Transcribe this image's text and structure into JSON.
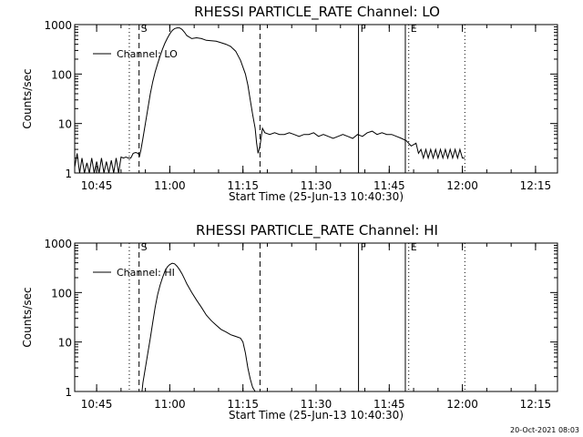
{
  "timestamp": "20-Oct-2021 08:03",
  "chart_data": [
    {
      "type": "line",
      "title": "RHESSI PARTICLE_RATE Channel: LO",
      "xlabel": "Start Time (25-Jun-13 10:40:30)",
      "ylabel": "Counts/sec",
      "yscale": "log",
      "xlim_minutes": [
        0,
        99
      ],
      "ylim": [
        1,
        1000
      ],
      "x_ticks": [
        {
          "min": 4.5,
          "label": "10:45"
        },
        {
          "min": 19.5,
          "label": "11:00"
        },
        {
          "min": 34.5,
          "label": "11:15"
        },
        {
          "min": 49.5,
          "label": "11:30"
        },
        {
          "min": 64.5,
          "label": "11:45"
        },
        {
          "min": 79.5,
          "label": "12:00"
        },
        {
          "min": 94.5,
          "label": "12:15"
        }
      ],
      "y_ticks": [
        {
          "value": 1,
          "label": "1"
        },
        {
          "value": 10,
          "label": "10"
        },
        {
          "value": 100,
          "label": "100"
        },
        {
          "value": 1000,
          "label": "1000"
        }
      ],
      "legend": "Channel: LO",
      "markers": [
        {
          "min": 11.2,
          "style": "dotted",
          "label": ""
        },
        {
          "min": 13.2,
          "style": "dashed",
          "label": "S"
        },
        {
          "min": 38.0,
          "style": "dashed",
          "label": ""
        },
        {
          "min": 58.2,
          "style": "solid",
          "label": "F"
        },
        {
          "min": 67.8,
          "style": "solid",
          "label": ""
        },
        {
          "min": 68.5,
          "style": "dotted",
          "label": "E"
        },
        {
          "min": 80.0,
          "style": "dotted",
          "label": ""
        }
      ],
      "series": [
        {
          "name": "Channel: LO",
          "x": [
            0.0,
            0.5,
            1.0,
            1.5,
            2.0,
            2.5,
            3.0,
            3.5,
            4.0,
            4.5,
            5.0,
            5.5,
            6.0,
            6.5,
            7.0,
            7.5,
            8.0,
            8.5,
            9.0,
            9.5,
            10.0,
            10.5,
            11.0,
            11.5,
            12.0,
            12.5,
            13.0,
            13.3,
            13.6,
            14.0,
            14.5,
            15.0,
            15.5,
            16.0,
            16.5,
            17.0,
            17.5,
            18.0,
            18.5,
            19.0,
            19.5,
            20.0,
            20.5,
            21.0,
            21.5,
            22.0,
            22.5,
            23.0,
            24.0,
            25.0,
            26.0,
            27.0,
            28.0,
            29.0,
            30.0,
            31.0,
            32.0,
            33.0,
            34.0,
            35.0,
            35.5,
            36.0,
            36.5,
            37.0,
            37.3,
            37.6,
            38.0,
            38.5,
            39.0,
            40.0,
            41.0,
            42.0,
            43.0,
            44.0,
            45.0,
            46.0,
            47.0,
            48.0,
            49.0,
            50.0,
            51.0,
            52.0,
            53.0,
            54.0,
            55.0,
            56.0,
            57.0,
            58.0,
            59.0,
            60.0,
            61.0,
            62.0,
            63.0,
            64.0,
            65.0,
            66.0,
            67.0,
            68.0,
            69.0,
            70.0,
            70.5,
            71.0,
            71.5,
            72.0,
            72.5,
            73.0,
            73.5,
            74.0,
            74.5,
            75.0,
            75.5,
            76.0,
            76.5,
            77.0,
            77.5,
            78.0,
            78.5,
            79.0,
            79.5,
            80.0
          ],
          "y": [
            1.3,
            2.5,
            1.0,
            2.0,
            1.0,
            1.6,
            1.0,
            2.0,
            1.0,
            1.7,
            1.0,
            2.0,
            1.0,
            1.7,
            1.0,
            1.8,
            1.0,
            2.0,
            1.0,
            2.1,
            2.0,
            2.1,
            2.0,
            2.0,
            2.5,
            2.6,
            2.5,
            2.2,
            3.0,
            5.0,
            10,
            20,
            40,
            70,
            110,
            160,
            230,
            320,
            420,
            530,
            650,
            760,
            830,
            860,
            860,
            800,
            700,
            600,
            520,
            540,
            520,
            480,
            470,
            460,
            430,
            400,
            360,
            290,
            190,
            100,
            60,
            30,
            15,
            8,
            4,
            2.5,
            3.5,
            8,
            6.5,
            6.0,
            6.5,
            6.0,
            6.0,
            6.5,
            6.0,
            5.5,
            6.0,
            6.0,
            6.5,
            5.5,
            6.0,
            5.5,
            5.0,
            5.5,
            6.0,
            5.5,
            5.0,
            6.0,
            5.5,
            6.5,
            7.0,
            6.0,
            6.5,
            6.0,
            6.0,
            5.5,
            5.0,
            4.5,
            3.5,
            4.0,
            2.5,
            3.0,
            2.0,
            3.0,
            2.0,
            3.0,
            2.0,
            3.0,
            2.0,
            3.0,
            2.0,
            3.0,
            2.0,
            3.0,
            2.0,
            3.0,
            2.0,
            3.0,
            2.0,
            2.0
          ]
        }
      ]
    },
    {
      "type": "line",
      "title": "RHESSI PARTICLE_RATE Channel: HI",
      "xlabel": "Start Time (25-Jun-13 10:40:30)",
      "ylabel": "Counts/sec",
      "yscale": "log",
      "xlim_minutes": [
        0,
        99
      ],
      "ylim": [
        1,
        1000
      ],
      "x_ticks": [
        {
          "min": 4.5,
          "label": "10:45"
        },
        {
          "min": 19.5,
          "label": "11:00"
        },
        {
          "min": 34.5,
          "label": "11:15"
        },
        {
          "min": 49.5,
          "label": "11:30"
        },
        {
          "min": 64.5,
          "label": "11:45"
        },
        {
          "min": 79.5,
          "label": "12:00"
        },
        {
          "min": 94.5,
          "label": "12:15"
        }
      ],
      "y_ticks": [
        {
          "value": 1,
          "label": "1"
        },
        {
          "value": 10,
          "label": "10"
        },
        {
          "value": 100,
          "label": "100"
        },
        {
          "value": 1000,
          "label": "1000"
        }
      ],
      "legend": "Channel: HI",
      "markers": [
        {
          "min": 11.2,
          "style": "dotted",
          "label": ""
        },
        {
          "min": 13.2,
          "style": "dashed",
          "label": "S"
        },
        {
          "min": 38.0,
          "style": "dashed",
          "label": ""
        },
        {
          "min": 58.2,
          "style": "solid",
          "label": "F"
        },
        {
          "min": 67.8,
          "style": "solid",
          "label": ""
        },
        {
          "min": 68.5,
          "style": "dotted",
          "label": "E"
        },
        {
          "min": 80.0,
          "style": "dotted",
          "label": ""
        }
      ],
      "series": [
        {
          "name": "Channel: HI",
          "x": [
            13.8,
            14.0,
            14.5,
            15.0,
            15.5,
            16.0,
            16.5,
            17.0,
            17.5,
            18.0,
            18.5,
            19.0,
            19.5,
            20.0,
            20.5,
            21.0,
            21.5,
            22.0,
            22.5,
            23.0,
            24.0,
            25.0,
            26.0,
            27.0,
            28.0,
            29.0,
            30.0,
            31.0,
            32.0,
            33.0,
            34.0,
            34.5,
            35.0,
            35.5,
            36.0,
            36.5,
            37.0
          ],
          "y": [
            1.0,
            1.5,
            3,
            6,
            12,
            25,
            50,
            90,
            140,
            200,
            270,
            330,
            370,
            390,
            380,
            340,
            290,
            240,
            190,
            150,
            100,
            70,
            50,
            35,
            27,
            22,
            18,
            16,
            14,
            13,
            12,
            10,
            6,
            3,
            1.8,
            1.2,
            1.0
          ]
        }
      ]
    }
  ]
}
